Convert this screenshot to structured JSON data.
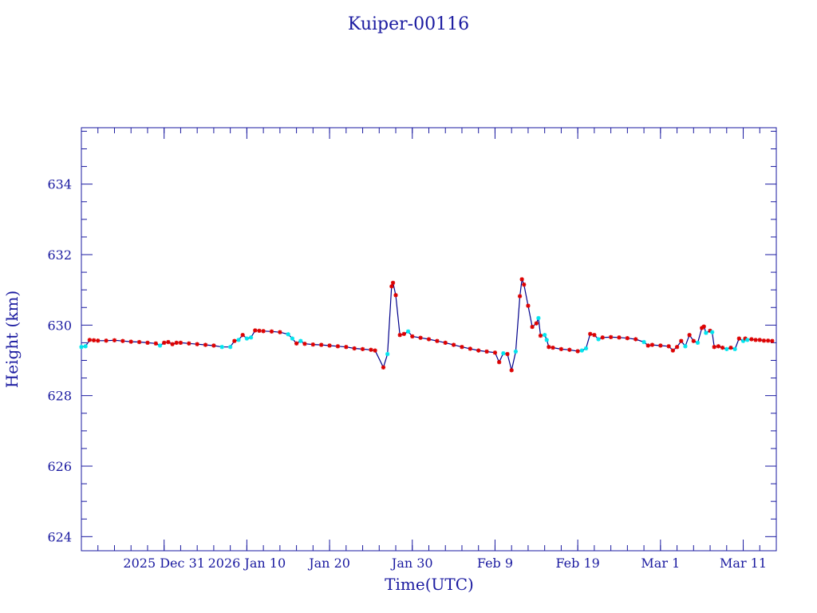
{
  "chart_data": {
    "type": "line",
    "title": "Kuiper-00116",
    "xlabel": "Time(UTC)",
    "ylabel": "Height (km)",
    "xlim": [
      "2025-12-21",
      "2026-03-15"
    ],
    "ylim": [
      623.6,
      635.6
    ],
    "x_ticks": [
      {
        "date": "2025-12-31",
        "label": "2025 Dec 31"
      },
      {
        "date": "2026-01-10",
        "label": "2026 Jan 10"
      },
      {
        "date": "2026-01-20",
        "label": "Jan 20"
      },
      {
        "date": "2026-01-30",
        "label": "Jan 30"
      },
      {
        "date": "2026-02-09",
        "label": "Feb  9"
      },
      {
        "date": "2026-02-19",
        "label": "Feb 19"
      },
      {
        "date": "2026-03-01",
        "label": "Mar  1"
      },
      {
        "date": "2026-03-11",
        "label": "Mar 11"
      }
    ],
    "y_ticks": [
      624,
      626,
      628,
      630,
      632,
      634
    ],
    "grid": false,
    "colors": {
      "axis": "#1a1aa0",
      "line": "#00008b",
      "marker_red": "#dd0000",
      "marker_cyan": "#00e5ee"
    },
    "series": [
      {
        "line_color": "#00008b",
        "points": [
          {
            "x": "2025-12-21 00:00",
            "y": 629.38,
            "m": "cyan"
          },
          {
            "x": "2025-12-21 12:00",
            "y": 629.4,
            "m": "cyan"
          },
          {
            "x": "2025-12-22 00:00",
            "y": 629.58,
            "m": "red"
          },
          {
            "x": "2025-12-22 12:00",
            "y": 629.57,
            "m": "red"
          },
          {
            "x": "2025-12-23 00:00",
            "y": 629.56,
            "m": "red"
          },
          {
            "x": "2025-12-24 00:00",
            "y": 629.56,
            "m": "red"
          },
          {
            "x": "2025-12-25 00:00",
            "y": 629.57,
            "m": "red"
          },
          {
            "x": "2025-12-26 00:00",
            "y": 629.55,
            "m": "red"
          },
          {
            "x": "2025-12-27 00:00",
            "y": 629.53,
            "m": "red"
          },
          {
            "x": "2025-12-28 00:00",
            "y": 629.52,
            "m": "red"
          },
          {
            "x": "2025-12-29 00:00",
            "y": 629.5,
            "m": "red"
          },
          {
            "x": "2025-12-30 00:00",
            "y": 629.48,
            "m": "red"
          },
          {
            "x": "2025-12-30 12:00",
            "y": 629.42,
            "m": "cyan"
          },
          {
            "x": "2025-12-31 00:00",
            "y": 629.5,
            "m": "red"
          },
          {
            "x": "2025-12-31 12:00",
            "y": 629.52,
            "m": "red"
          },
          {
            "x": "2026-01-01 00:00",
            "y": 629.46,
            "m": "red"
          },
          {
            "x": "2026-01-01 12:00",
            "y": 629.5,
            "m": "red"
          },
          {
            "x": "2026-01-02 00:00",
            "y": 629.5,
            "m": "red"
          },
          {
            "x": "2026-01-03 00:00",
            "y": 629.48,
            "m": "red"
          },
          {
            "x": "2026-01-04 00:00",
            "y": 629.46,
            "m": "red"
          },
          {
            "x": "2026-01-05 00:00",
            "y": 629.44,
            "m": "red"
          },
          {
            "x": "2026-01-06 00:00",
            "y": 629.42,
            "m": "red"
          },
          {
            "x": "2026-01-07 00:00",
            "y": 629.38,
            "m": "cyan"
          },
          {
            "x": "2026-01-08 00:00",
            "y": 629.38,
            "m": "cyan"
          },
          {
            "x": "2026-01-08 12:00",
            "y": 629.55,
            "m": "red"
          },
          {
            "x": "2026-01-09 00:00",
            "y": 629.58,
            "m": "cyan"
          },
          {
            "x": "2026-01-09 12:00",
            "y": 629.72,
            "m": "red"
          },
          {
            "x": "2026-01-10 00:00",
            "y": 629.62,
            "m": "cyan"
          },
          {
            "x": "2026-01-10 12:00",
            "y": 629.65,
            "m": "cyan"
          },
          {
            "x": "2026-01-11 00:00",
            "y": 629.85,
            "m": "red"
          },
          {
            "x": "2026-01-11 12:00",
            "y": 629.84,
            "m": "red"
          },
          {
            "x": "2026-01-12 00:00",
            "y": 629.83,
            "m": "red"
          },
          {
            "x": "2026-01-13 00:00",
            "y": 629.82,
            "m": "red"
          },
          {
            "x": "2026-01-14 00:00",
            "y": 629.8,
            "m": "red"
          },
          {
            "x": "2026-01-15 00:00",
            "y": 629.74,
            "m": "cyan"
          },
          {
            "x": "2026-01-15 12:00",
            "y": 629.62,
            "m": "cyan"
          },
          {
            "x": "2026-01-16 00:00",
            "y": 629.48,
            "m": "red"
          },
          {
            "x": "2026-01-16 12:00",
            "y": 629.55,
            "m": "cyan"
          },
          {
            "x": "2026-01-17 00:00",
            "y": 629.47,
            "m": "red"
          },
          {
            "x": "2026-01-18 00:00",
            "y": 629.45,
            "m": "red"
          },
          {
            "x": "2026-01-19 00:00",
            "y": 629.44,
            "m": "red"
          },
          {
            "x": "2026-01-20 00:00",
            "y": 629.42,
            "m": "red"
          },
          {
            "x": "2026-01-21 00:00",
            "y": 629.4,
            "m": "red"
          },
          {
            "x": "2026-01-22 00:00",
            "y": 629.38,
            "m": "red"
          },
          {
            "x": "2026-01-23 00:00",
            "y": 629.34,
            "m": "red"
          },
          {
            "x": "2026-01-24 00:00",
            "y": 629.32,
            "m": "red"
          },
          {
            "x": "2026-01-25 00:00",
            "y": 629.3,
            "m": "red"
          },
          {
            "x": "2026-01-25 12:00",
            "y": 629.28,
            "m": "red"
          },
          {
            "x": "2026-01-26 12:00",
            "y": 628.8,
            "m": "red"
          },
          {
            "x": "2026-01-27 00:00",
            "y": 629.18,
            "m": "cyan"
          },
          {
            "x": "2026-01-27 12:00",
            "y": 631.1,
            "m": "red"
          },
          {
            "x": "2026-01-27 16:00",
            "y": 631.2,
            "m": "red"
          },
          {
            "x": "2026-01-28 00:00",
            "y": 630.85,
            "m": "red"
          },
          {
            "x": "2026-01-28 12:00",
            "y": 629.72,
            "m": "red"
          },
          {
            "x": "2026-01-29 00:00",
            "y": 629.75,
            "m": "red"
          },
          {
            "x": "2026-01-29 12:00",
            "y": 629.82,
            "m": "cyan"
          },
          {
            "x": "2026-01-30 00:00",
            "y": 629.68,
            "m": "red"
          },
          {
            "x": "2026-01-31 00:00",
            "y": 629.64,
            "m": "red"
          },
          {
            "x": "2026-02-01 00:00",
            "y": 629.6,
            "m": "red"
          },
          {
            "x": "2026-02-02 00:00",
            "y": 629.55,
            "m": "red"
          },
          {
            "x": "2026-02-03 00:00",
            "y": 629.5,
            "m": "red"
          },
          {
            "x": "2026-02-04 00:00",
            "y": 629.44,
            "m": "red"
          },
          {
            "x": "2026-02-05 00:00",
            "y": 629.38,
            "m": "red"
          },
          {
            "x": "2026-02-06 00:00",
            "y": 629.33,
            "m": "red"
          },
          {
            "x": "2026-02-07 00:00",
            "y": 629.28,
            "m": "red"
          },
          {
            "x": "2026-02-08 00:00",
            "y": 629.25,
            "m": "red"
          },
          {
            "x": "2026-02-09 00:00",
            "y": 629.22,
            "m": "red"
          },
          {
            "x": "2026-02-09 12:00",
            "y": 628.95,
            "m": "red"
          },
          {
            "x": "2026-02-10 00:00",
            "y": 629.2,
            "m": "cyan"
          },
          {
            "x": "2026-02-10 12:00",
            "y": 629.18,
            "m": "red"
          },
          {
            "x": "2026-02-11 00:00",
            "y": 628.72,
            "m": "red"
          },
          {
            "x": "2026-02-11 12:00",
            "y": 629.25,
            "m": "cyan"
          },
          {
            "x": "2026-02-12 00:00",
            "y": 630.82,
            "m": "red"
          },
          {
            "x": "2026-02-12 06:00",
            "y": 631.3,
            "m": "red"
          },
          {
            "x": "2026-02-12 12:00",
            "y": 631.15,
            "m": "red"
          },
          {
            "x": "2026-02-13 00:00",
            "y": 630.55,
            "m": "red"
          },
          {
            "x": "2026-02-13 12:00",
            "y": 629.95,
            "m": "red"
          },
          {
            "x": "2026-02-14 00:00",
            "y": 630.05,
            "m": "red"
          },
          {
            "x": "2026-02-14 06:00",
            "y": 630.2,
            "m": "cyan"
          },
          {
            "x": "2026-02-14 12:00",
            "y": 629.7,
            "m": "red"
          },
          {
            "x": "2026-02-15 00:00",
            "y": 629.72,
            "m": "cyan"
          },
          {
            "x": "2026-02-15 06:00",
            "y": 629.58,
            "m": "cyan"
          },
          {
            "x": "2026-02-15 12:00",
            "y": 629.38,
            "m": "red"
          },
          {
            "x": "2026-02-16 00:00",
            "y": 629.36,
            "m": "red"
          },
          {
            "x": "2026-02-17 00:00",
            "y": 629.32,
            "m": "red"
          },
          {
            "x": "2026-02-18 00:00",
            "y": 629.3,
            "m": "red"
          },
          {
            "x": "2026-02-19 00:00",
            "y": 629.26,
            "m": "red"
          },
          {
            "x": "2026-02-19 12:00",
            "y": 629.28,
            "m": "cyan"
          },
          {
            "x": "2026-02-20 00:00",
            "y": 629.34,
            "m": "cyan"
          },
          {
            "x": "2026-02-20 12:00",
            "y": 629.75,
            "m": "red"
          },
          {
            "x": "2026-02-21 00:00",
            "y": 629.72,
            "m": "red"
          },
          {
            "x": "2026-02-21 12:00",
            "y": 629.6,
            "m": "cyan"
          },
          {
            "x": "2026-02-22 00:00",
            "y": 629.65,
            "m": "red"
          },
          {
            "x": "2026-02-23 00:00",
            "y": 629.66,
            "m": "red"
          },
          {
            "x": "2026-02-24 00:00",
            "y": 629.65,
            "m": "red"
          },
          {
            "x": "2026-02-25 00:00",
            "y": 629.63,
            "m": "red"
          },
          {
            "x": "2026-02-26 00:00",
            "y": 629.6,
            "m": "red"
          },
          {
            "x": "2026-02-27 00:00",
            "y": 629.52,
            "m": "cyan"
          },
          {
            "x": "2026-02-27 12:00",
            "y": 629.42,
            "m": "red"
          },
          {
            "x": "2026-02-28 00:00",
            "y": 629.44,
            "m": "red"
          },
          {
            "x": "2026-03-01 00:00",
            "y": 629.42,
            "m": "red"
          },
          {
            "x": "2026-03-02 00:00",
            "y": 629.4,
            "m": "red"
          },
          {
            "x": "2026-03-02 12:00",
            "y": 629.28,
            "m": "red"
          },
          {
            "x": "2026-03-03 00:00",
            "y": 629.38,
            "m": "red"
          },
          {
            "x": "2026-03-03 12:00",
            "y": 629.55,
            "m": "red"
          },
          {
            "x": "2026-03-04 00:00",
            "y": 629.4,
            "m": "cyan"
          },
          {
            "x": "2026-03-04 12:00",
            "y": 629.72,
            "m": "red"
          },
          {
            "x": "2026-03-05 00:00",
            "y": 629.55,
            "m": "red"
          },
          {
            "x": "2026-03-05 12:00",
            "y": 629.5,
            "m": "cyan"
          },
          {
            "x": "2026-03-06 00:00",
            "y": 629.92,
            "m": "red"
          },
          {
            "x": "2026-03-06 06:00",
            "y": 629.96,
            "m": "red"
          },
          {
            "x": "2026-03-06 12:00",
            "y": 629.78,
            "m": "cyan"
          },
          {
            "x": "2026-03-07 00:00",
            "y": 629.84,
            "m": "red"
          },
          {
            "x": "2026-03-07 06:00",
            "y": 629.8,
            "m": "cyan"
          },
          {
            "x": "2026-03-07 12:00",
            "y": 629.38,
            "m": "red"
          },
          {
            "x": "2026-03-08 00:00",
            "y": 629.4,
            "m": "red"
          },
          {
            "x": "2026-03-08 12:00",
            "y": 629.36,
            "m": "red"
          },
          {
            "x": "2026-03-09 00:00",
            "y": 629.32,
            "m": "cyan"
          },
          {
            "x": "2026-03-09 12:00",
            "y": 629.36,
            "m": "red"
          },
          {
            "x": "2026-03-10 00:00",
            "y": 629.32,
            "m": "cyan"
          },
          {
            "x": "2026-03-10 12:00",
            "y": 629.62,
            "m": "red"
          },
          {
            "x": "2026-03-11 00:00",
            "y": 629.55,
            "m": "cyan"
          },
          {
            "x": "2026-03-11 06:00",
            "y": 629.62,
            "m": "red"
          },
          {
            "x": "2026-03-11 12:00",
            "y": 629.58,
            "m": "cyan"
          },
          {
            "x": "2026-03-12 00:00",
            "y": 629.6,
            "m": "red"
          },
          {
            "x": "2026-03-12 12:00",
            "y": 629.58,
            "m": "red"
          },
          {
            "x": "2026-03-13 00:00",
            "y": 629.58,
            "m": "red"
          },
          {
            "x": "2026-03-13 12:00",
            "y": 629.56,
            "m": "red"
          },
          {
            "x": "2026-03-14 00:00",
            "y": 629.56,
            "m": "red"
          },
          {
            "x": "2026-03-14 12:00",
            "y": 629.55,
            "m": "red"
          }
        ]
      }
    ]
  }
}
